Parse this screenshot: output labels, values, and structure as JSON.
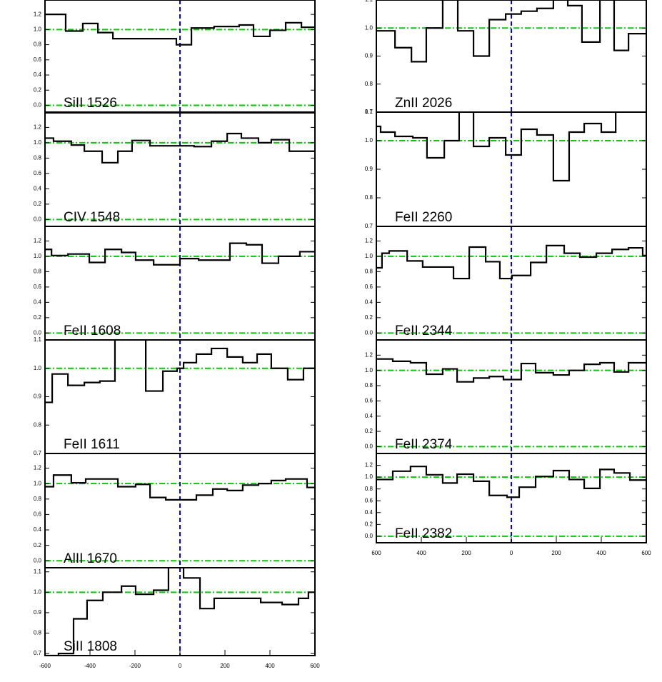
{
  "chart_data": [
    {
      "type": "line",
      "drawstyle": "steps-post",
      "label": "SiII 1526",
      "color": "#000000",
      "hline_color": "#00cc00",
      "vline_color": "#0000ff",
      "x": [
        -600,
        -508,
        -432,
        -365,
        -298,
        -16,
        51,
        152,
        263,
        327,
        400,
        470,
        540
      ],
      "values": [
        1.2,
        0.98,
        1.08,
        0.96,
        0.88,
        0.8,
        1.02,
        1.04,
        1.06,
        0.91,
        0.99,
        1.09,
        1.03
      ],
      "xlim": [
        -600,
        600
      ],
      "ylim": [
        -0.09,
        1.39
      ],
      "yticks": [
        {
          "value": 0,
          "label": "0.0"
        },
        0.2,
        0.4,
        0.6,
        0.8,
        {
          "value": 1,
          "label": "1.0"
        },
        1.2
      ],
      "hlines": [
        0,
        1
      ],
      "vlines": [
        0
      ]
    },
    {
      "type": "line",
      "drawstyle": "steps-post",
      "label": "CIV 1548",
      "color": "#000000",
      "hline_color": "#00cc00",
      "vline_color": "#0000ff",
      "x": [
        -600,
        -562,
        -483,
        -425,
        -346,
        -276,
        -213,
        -133,
        63,
        140,
        210,
        273,
        349,
        406,
        486
      ],
      "values": [
        1.06,
        1.02,
        0.97,
        0.89,
        0.74,
        0.89,
        1.03,
        0.96,
        0.95,
        1.02,
        1.12,
        1.06,
        1.0,
        1.04,
        0.89
      ],
      "xlim": [
        -600,
        600
      ],
      "ylim": [
        -0.09,
        1.39
      ],
      "yticks": [
        {
          "value": 0,
          "label": "0.0"
        },
        0.2,
        0.4,
        0.6,
        0.8,
        {
          "value": 1,
          "label": "1.0"
        },
        1.2
      ],
      "hlines": [
        0,
        1
      ],
      "vlines": [
        0
      ]
    },
    {
      "type": "line",
      "drawstyle": "steps-post",
      "label": "FeII 1608",
      "color": "#000000",
      "hline_color": "#00cc00",
      "vline_color": "#0000ff",
      "x": [
        -600,
        -571,
        -498,
        -403,
        -333,
        -260,
        -197,
        -117,
        0,
        83,
        222,
        295,
        365,
        438,
        533
      ],
      "values": [
        1.09,
        1.01,
        1.03,
        0.92,
        1.09,
        1.05,
        0.95,
        0.89,
        0.97,
        0.95,
        1.17,
        1.15,
        0.91,
        1.0,
        1.06
      ],
      "xlim": [
        -600,
        600
      ],
      "ylim": [
        -0.09,
        1.39
      ],
      "yticks": [
        {
          "value": 0,
          "label": "0.0"
        },
        0.2,
        0.4,
        0.6,
        0.8,
        {
          "value": 1,
          "label": "1.0"
        },
        1.2
      ],
      "hlines": [
        0,
        1
      ],
      "vlines": [
        0
      ]
    },
    {
      "type": "line",
      "drawstyle": "steps-post",
      "label": "FeII 1611",
      "color": "#000000",
      "hline_color": "#00cc00",
      "vline_color": "#0000ff",
      "x": [
        -600,
        -568,
        -498,
        -425,
        -356,
        -289,
        -152,
        -76,
        -13,
        16,
        73,
        140,
        210,
        279,
        343,
        406,
        479,
        549
      ],
      "values": [
        0.88,
        0.98,
        0.94,
        0.95,
        0.955,
        1.15,
        0.92,
        0.99,
        1.0,
        1.02,
        1.05,
        1.07,
        1.04,
        1.02,
        1.05,
        1.0,
        0.96,
        1.0
      ],
      "xlim": [
        -600,
        600
      ],
      "ylim": [
        0.7,
        1.1
      ],
      "yticks": [
        0.7,
        0.8,
        0.9,
        {
          "value": 1,
          "label": "1.0"
        },
        1.1
      ],
      "hlines": [
        1
      ],
      "vlines": [
        0
      ]
    },
    {
      "type": "line",
      "drawstyle": "steps-post",
      "label": "AlII 1670",
      "color": "#000000",
      "hline_color": "#00cc00",
      "vline_color": "#0000ff",
      "x": [
        -600,
        -562,
        -483,
        -419,
        -276,
        -197,
        -133,
        -63,
        73,
        146,
        210,
        279,
        349,
        406,
        470,
        565
      ],
      "values": [
        0.96,
        1.11,
        1.01,
        1.06,
        0.96,
        0.99,
        0.82,
        0.79,
        0.85,
        0.93,
        0.91,
        0.98,
        1.0,
        1.04,
        1.06,
        0.95
      ],
      "xlim": [
        -600,
        600
      ],
      "ylim": [
        -0.09,
        1.39
      ],
      "yticks": [
        {
          "value": 0,
          "label": "0.0"
        },
        0.2,
        0.4,
        0.6,
        0.8,
        {
          "value": 1,
          "label": "1.0"
        },
        1.2
      ],
      "hlines": [
        0,
        1
      ],
      "vlines": [
        0
      ]
    },
    {
      "type": "line",
      "drawstyle": "steps-post",
      "label": "SiII 1808",
      "color": "#000000",
      "hline_color": "#00cc00",
      "vline_color": "#0000ff",
      "x": [
        -600,
        -540,
        -473,
        -413,
        -343,
        -260,
        -197,
        -117,
        -51,
        16,
        89,
        152,
        222,
        359,
        454,
        527,
        571
      ],
      "values": [
        0.69,
        0.7,
        0.87,
        0.96,
        1.0,
        1.03,
        0.99,
        1.01,
        1.15,
        1.07,
        0.92,
        0.97,
        0.97,
        0.95,
        0.94,
        0.97,
        1.0
      ],
      "xlim": [
        -600,
        600
      ],
      "ylim": [
        0.69,
        1.12
      ],
      "yticks": [
        0.7,
        0.8,
        0.9,
        {
          "value": 1,
          "label": "1.0"
        },
        1.1
      ],
      "xticks": [
        -600,
        -400,
        -200,
        0,
        200,
        400,
        600
      ],
      "hlines": [
        1
      ],
      "vlines": [
        0
      ]
    },
    {
      "type": "line",
      "drawstyle": "steps-post",
      "label": "ZnII 2026",
      "color": "#000000",
      "hline_color": "#00cc00",
      "vline_color": "#0000ff",
      "x": [
        -600,
        -517,
        -444,
        -378,
        -305,
        -238,
        -168,
        -98,
        -25,
        44,
        114,
        187,
        251,
        314,
        394,
        457,
        521
      ],
      "values": [
        0.99,
        0.93,
        0.88,
        1.0,
        1.15,
        0.99,
        0.9,
        1.03,
        1.05,
        1.06,
        1.07,
        1.12,
        1.08,
        0.95,
        1.15,
        0.92,
        0.98
      ],
      "xlim": [
        -600,
        600
      ],
      "ylim": [
        0.7,
        1.1
      ],
      "yticks": [
        0.7,
        0.8,
        0.9,
        {
          "value": 1,
          "label": "1.0"
        },
        1.1
      ],
      "hlines": [
        1
      ],
      "vlines": [
        0
      ]
    },
    {
      "type": "line",
      "drawstyle": "steps-post",
      "label": "FeII 2260",
      "color": "#000000",
      "hline_color": "#00cc00",
      "vline_color": "#0000ff",
      "x": [
        -600,
        -581,
        -517,
        -438,
        -375,
        -298,
        -232,
        -168,
        -98,
        -25,
        44,
        114,
        187,
        257,
        324,
        400,
        464
      ],
      "values": [
        1.05,
        1.03,
        1.015,
        1.01,
        0.94,
        1.0,
        1.15,
        0.98,
        1.01,
        0.95,
        1.04,
        1.02,
        0.86,
        1.03,
        1.06,
        1.03,
        1.15
      ],
      "xlim": [
        -600,
        600
      ],
      "ylim": [
        0.7,
        1.1
      ],
      "yticks": [
        0.7,
        0.8,
        0.9,
        {
          "value": 1,
          "label": "1.0"
        },
        1.1
      ],
      "hlines": [
        1
      ],
      "vlines": [
        0
      ]
    },
    {
      "type": "line",
      "drawstyle": "steps-post",
      "label": "FeII 2344",
      "color": "#000000",
      "hline_color": "#00cc00",
      "vline_color": "#0000ff",
      "x": [
        -600,
        -575,
        -543,
        -463,
        -394,
        -257,
        -187,
        -114,
        -51,
        3,
        86,
        156,
        235,
        305,
        378,
        448,
        521,
        584
      ],
      "values": [
        0.85,
        1.04,
        1.07,
        0.94,
        0.86,
        0.71,
        1.12,
        0.93,
        0.71,
        0.75,
        0.92,
        1.14,
        1.04,
        0.99,
        1.04,
        1.09,
        1.11,
        1.01
      ],
      "xlim": [
        -600,
        600
      ],
      "ylim": [
        -0.09,
        1.39
      ],
      "yticks": [
        {
          "value": 0,
          "label": "0.0"
        },
        0.2,
        0.4,
        0.6,
        0.8,
        {
          "value": 1,
          "label": "1.0"
        },
        1.2
      ],
      "hlines": [
        0,
        1
      ],
      "vlines": [
        0
      ]
    },
    {
      "type": "line",
      "drawstyle": "steps-post",
      "label": "FeII 2374",
      "color": "#000000",
      "hline_color": "#00cc00",
      "vline_color": "#0000ff",
      "x": [
        -600,
        -527,
        -448,
        -378,
        -305,
        -241,
        -168,
        -98,
        -35,
        44,
        108,
        187,
        257,
        324,
        394,
        457,
        521
      ],
      "values": [
        1.15,
        1.12,
        1.1,
        0.95,
        1.02,
        0.85,
        0.9,
        0.92,
        0.88,
        1.09,
        0.97,
        0.94,
        1.0,
        1.08,
        1.1,
        0.98,
        1.1
      ],
      "xlim": [
        -600,
        600
      ],
      "ylim": [
        -0.09,
        1.4
      ],
      "yticks": [
        {
          "value": 0,
          "label": "0.0"
        },
        0.2,
        0.4,
        0.6,
        0.8,
        {
          "value": 1,
          "label": "1.0"
        },
        1.2
      ],
      "hlines": [
        0,
        1
      ],
      "vlines": [
        0
      ]
    },
    {
      "type": "line",
      "drawstyle": "steps-post",
      "label": "FeII 2382",
      "color": "#000000",
      "hline_color": "#00cc00",
      "vline_color": "#0000ff",
      "x": [
        -600,
        -527,
        -448,
        -378,
        -305,
        -241,
        -168,
        -98,
        -19,
        35,
        108,
        187,
        257,
        324,
        394,
        457,
        527
      ],
      "values": [
        0.96,
        1.1,
        1.18,
        1.04,
        0.9,
        1.05,
        0.93,
        0.69,
        0.66,
        0.83,
        1.01,
        1.11,
        0.96,
        0.81,
        1.13,
        1.07,
        0.95
      ],
      "xlim": [
        -600,
        600
      ],
      "ylim": [
        -0.11,
        1.4
      ],
      "yticks": [
        {
          "value": 0,
          "label": "0.0"
        },
        0.2,
        0.4,
        0.6,
        0.8,
        {
          "value": 1,
          "label": "1.0"
        },
        1.2
      ],
      "xticks": [
        {
          "value": -600,
          "label": "600"
        },
        {
          "value": -400,
          "label": "400"
        },
        {
          "value": -200,
          "label": "200"
        },
        0,
        200,
        400,
        600
      ],
      "hlines": [
        0,
        1
      ],
      "vlines": [
        0
      ]
    }
  ]
}
